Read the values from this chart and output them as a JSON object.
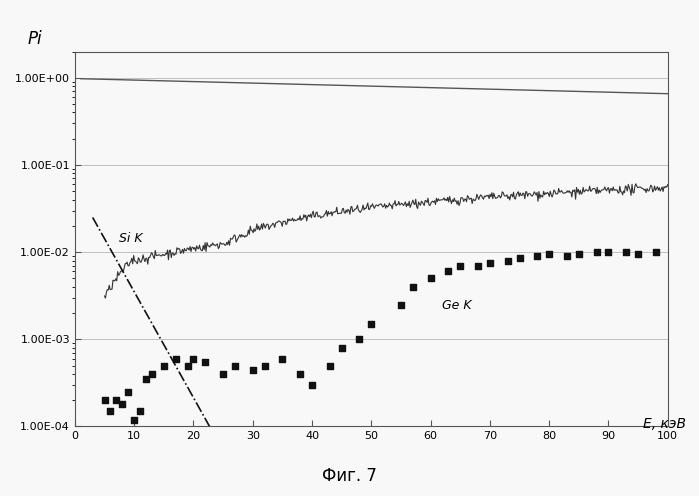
{
  "title_y": "Pi",
  "xlabel": "E, кэВ",
  "figcaption": "Фиг. 7",
  "xlim": [
    0,
    100
  ],
  "ylim_log": [
    0.0001,
    2.0
  ],
  "yticks": [
    0.0001,
    0.001,
    0.01,
    0.1,
    1.0
  ],
  "ytick_labels": [
    "1.00E-04",
    "1.00E-03",
    "1.00E-02",
    "1.00E-01",
    "1.00E+00"
  ],
  "xticks": [
    0,
    10,
    20,
    30,
    40,
    50,
    60,
    70,
    80,
    90,
    100
  ],
  "line1_color": "#555555",
  "line2_color": "#333333",
  "line3_color": "#111111",
  "scatter_color": "#111111",
  "background": "#f5f5f5",
  "Si_K_label": "Si K",
  "Ge_K_label": "Ge K"
}
